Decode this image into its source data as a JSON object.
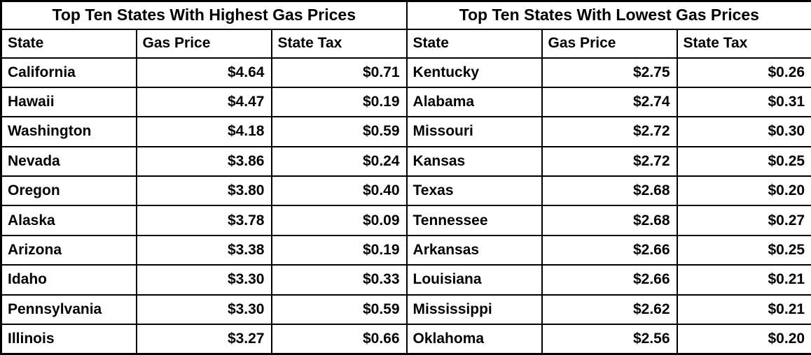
{
  "chart_data": [
    {
      "type": "table",
      "title": "Top Ten States With Highest Gas Prices",
      "columns": [
        "State",
        "Gas Price",
        "State Tax"
      ],
      "rows": [
        [
          "California",
          "$4.64",
          "$0.71"
        ],
        [
          "Hawaii",
          "$4.47",
          "$0.19"
        ],
        [
          "Washington",
          "$4.18",
          "$0.59"
        ],
        [
          "Nevada",
          "$3.86",
          "$0.24"
        ],
        [
          "Oregon",
          "$3.80",
          "$0.40"
        ],
        [
          "Alaska",
          "$3.78",
          "$0.09"
        ],
        [
          "Arizona",
          "$3.38",
          "$0.19"
        ],
        [
          "Idaho",
          "$3.30",
          "$0.33"
        ],
        [
          "Pennsylvania",
          "$3.30",
          "$0.59"
        ],
        [
          "Illinois",
          "$3.27",
          "$0.66"
        ]
      ]
    },
    {
      "type": "table",
      "title": "Top Ten States With Lowest Gas Prices",
      "columns": [
        "State",
        "Gas Price",
        "State Tax"
      ],
      "rows": [
        [
          "Kentucky",
          "$2.75",
          "$0.26"
        ],
        [
          "Alabama",
          "$2.74",
          "$0.31"
        ],
        [
          "Missouri",
          "$2.72",
          "$0.30"
        ],
        [
          "Kansas",
          "$2.72",
          "$0.25"
        ],
        [
          "Texas",
          "$2.68",
          "$0.20"
        ],
        [
          "Tennessee",
          "$2.68",
          "$0.27"
        ],
        [
          "Arkansas",
          "$2.66",
          "$0.25"
        ],
        [
          "Louisiana",
          "$2.66",
          "$0.21"
        ],
        [
          "Mississippi",
          "$2.62",
          "$0.21"
        ],
        [
          "Oklahoma",
          "$2.56",
          "$0.20"
        ]
      ]
    },
    {
      "layout": {
        "colors": {
          "border": "#000000",
          "text": "#000000",
          "background": "#ffffff"
        }
      }
    }
  ]
}
